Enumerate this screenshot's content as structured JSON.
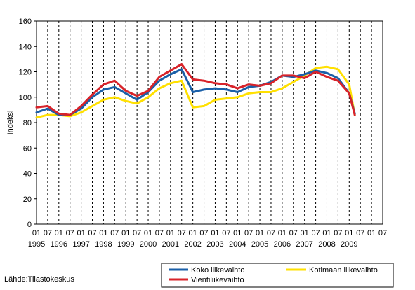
{
  "chart_data": {
    "type": "line",
    "ylabel": "Indeksi",
    "source": "Lähde:Tilastokeskus",
    "ylim": [
      0,
      160
    ],
    "yticks": [
      0,
      20,
      40,
      60,
      80,
      100,
      120,
      140,
      160
    ],
    "xlim": [
      1995.0,
      2010.5
    ],
    "years": [
      "1995",
      "1996",
      "1997",
      "1998",
      "1999",
      "2000",
      "2001",
      "2002",
      "2003",
      "2004",
      "2005",
      "2006",
      "2007",
      "2008",
      "2009"
    ],
    "month_labels": [
      "01",
      "07"
    ],
    "grid": "vertical-dashed",
    "legend": "bottom",
    "colors": {
      "Koko liikevaihto": "#1a5fa8",
      "Kotimaan liikevaihto": "#ffe000",
      "Vientiliikevaihto": "#d8232a",
      "grid": "#000000",
      "frame": "#000000"
    },
    "x": [
      1995.0,
      1995.5,
      1996.0,
      1996.5,
      1997.0,
      1997.5,
      1998.0,
      1998.5,
      1999.0,
      1999.5,
      2000.0,
      2000.5,
      2001.0,
      2001.5,
      2002.0,
      2002.5,
      2003.0,
      2003.5,
      2004.0,
      2004.5,
      2005.0,
      2005.5,
      2006.0,
      2006.5,
      2007.0,
      2007.5,
      2008.0,
      2008.5,
      2009.0,
      2009.25
    ],
    "series": [
      {
        "name": "Koko liikevaihto",
        "values": [
          88,
          91,
          86,
          86,
          91,
          100,
          106,
          108,
          103,
          98,
          104,
          113,
          118,
          122,
          104,
          106,
          107,
          106,
          104,
          108,
          109,
          112,
          117,
          116,
          118,
          121,
          119,
          115,
          103,
          87
        ]
      },
      {
        "name": "Kotimaan liikevaihto",
        "values": [
          84,
          86,
          86,
          85,
          88,
          93,
          98,
          100,
          97,
          95,
          100,
          107,
          111,
          113,
          92,
          93,
          98,
          99,
          100,
          103,
          104,
          104,
          107,
          112,
          117,
          123,
          124,
          122,
          110,
          86
        ]
      },
      {
        "name": "Vientiliikevaihto",
        "values": [
          92,
          93,
          87,
          86,
          93,
          102,
          110,
          113,
          105,
          101,
          105,
          116,
          121,
          126,
          114,
          113,
          111,
          110,
          107,
          110,
          109,
          111,
          117,
          117,
          115,
          120,
          116,
          113,
          103,
          86
        ]
      }
    ]
  }
}
